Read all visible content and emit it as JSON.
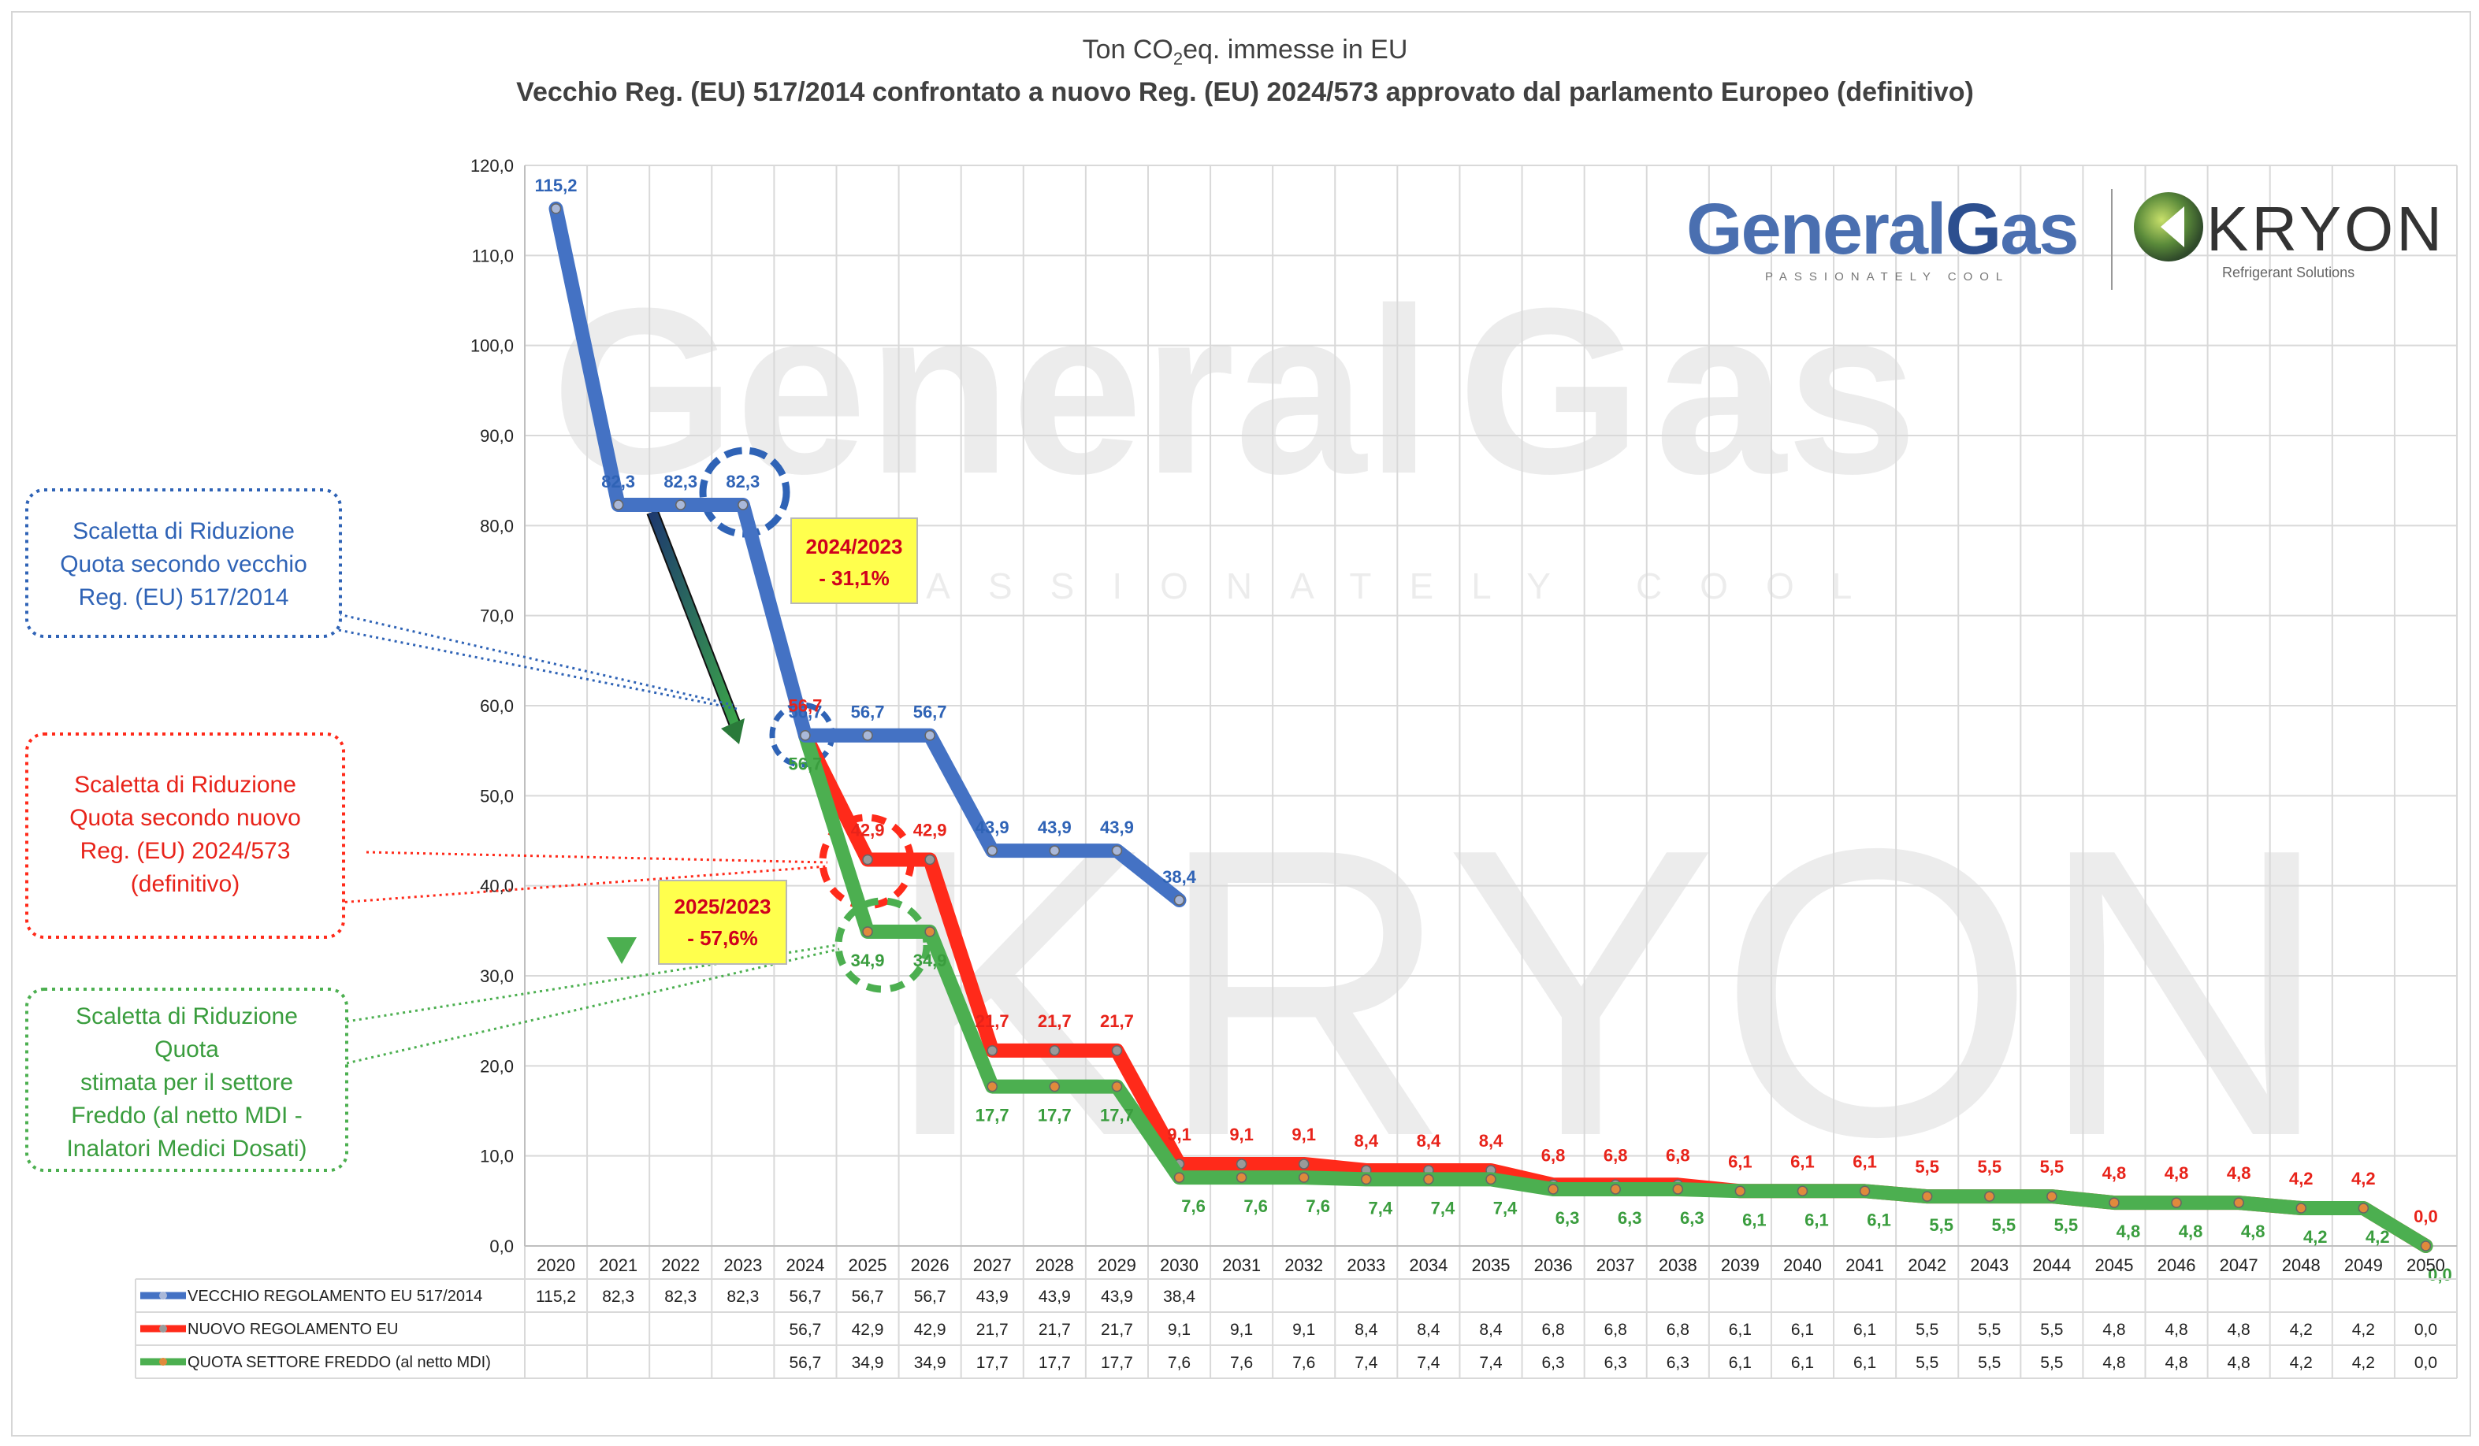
{
  "chart_data": {
    "type": "line",
    "title_parts": {
      "prefix": "Ton CO",
      "sub": "2",
      "suffix": "eq. immesse in EU"
    },
    "subtitle": "Vecchio Reg. (EU) 517/2014 confrontato a nuovo Reg. (EU) 2024/573 approvato dal parlamento Europeo (definitivo)",
    "ylim": [
      0,
      120
    ],
    "yticks": [
      "0,0",
      "10,0",
      "20,0",
      "30,0",
      "40,0",
      "50,0",
      "60,0",
      "70,0",
      "80,0",
      "90,0",
      "100,0",
      "110,0",
      "120,0"
    ],
    "categories": [
      "2020",
      "2021",
      "2022",
      "2023",
      "2024",
      "2025",
      "2026",
      "2027",
      "2028",
      "2029",
      "2030",
      "2031",
      "2032",
      "2033",
      "2034",
      "2035",
      "2036",
      "2037",
      "2038",
      "2039",
      "2040",
      "2041",
      "2042",
      "2043",
      "2044",
      "2045",
      "2046",
      "2047",
      "2048",
      "2049",
      "2050"
    ],
    "series": [
      {
        "name": "VECCHIO REGOLAMENTO EU 517/2014",
        "color": "#4472c4",
        "values": [
          115.2,
          82.3,
          82.3,
          82.3,
          56.7,
          56.7,
          56.7,
          43.9,
          43.9,
          43.9,
          38.4,
          null,
          null,
          null,
          null,
          null,
          null,
          null,
          null,
          null,
          null,
          null,
          null,
          null,
          null,
          null,
          null,
          null,
          null,
          null,
          null
        ],
        "labels": [
          "115,2",
          "82,3",
          "82,3",
          "82,3",
          "56,7",
          "56,7",
          "56,7",
          "43,9",
          "43,9",
          "43,9",
          "38,4",
          "",
          "",
          "",
          "",
          "",
          "",
          "",
          "",
          "",
          "",
          "",
          "",
          "",
          "",
          "",
          "",
          "",
          "",
          "",
          ""
        ]
      },
      {
        "name": "NUOVO REGOLAMENTO EU",
        "color": "#ff2a1a",
        "values": [
          null,
          null,
          null,
          null,
          56.7,
          42.9,
          42.9,
          21.7,
          21.7,
          21.7,
          9.1,
          9.1,
          9.1,
          8.4,
          8.4,
          8.4,
          6.8,
          6.8,
          6.8,
          6.1,
          6.1,
          6.1,
          5.5,
          5.5,
          5.5,
          4.8,
          4.8,
          4.8,
          4.2,
          4.2,
          0.0
        ],
        "labels": [
          "",
          "",
          "",
          "",
          "56,7",
          "42,9",
          "42,9",
          "21,7",
          "21,7",
          "21,7",
          "9,1",
          "9,1",
          "9,1",
          "8,4",
          "8,4",
          "8,4",
          "6,8",
          "6,8",
          "6,8",
          "6,1",
          "6,1",
          "6,1",
          "5,5",
          "5,5",
          "5,5",
          "4,8",
          "4,8",
          "4,8",
          "4,2",
          "4,2",
          "0,0"
        ]
      },
      {
        "name": "QUOTA SETTORE FREDDO (al netto MDI)",
        "color": "#4caf50",
        "values": [
          null,
          null,
          null,
          null,
          56.7,
          34.9,
          34.9,
          17.7,
          17.7,
          17.7,
          7.6,
          7.6,
          7.6,
          7.4,
          7.4,
          7.4,
          6.3,
          6.3,
          6.3,
          6.1,
          6.1,
          6.1,
          5.5,
          5.5,
          5.5,
          4.8,
          4.8,
          4.8,
          4.2,
          4.2,
          0.0
        ],
        "labels": [
          "",
          "",
          "",
          "",
          "56,7",
          "34,9",
          "34,9",
          "17,7",
          "17,7",
          "17,7",
          "7,6",
          "7,6",
          "7,6",
          "7,4",
          "7,4",
          "7,4",
          "6,3",
          "6,3",
          "6,3",
          "6,1",
          "6,1",
          "6,1",
          "5,5",
          "5,5",
          "5,5",
          "4,8",
          "4,8",
          "4,8",
          "4,2",
          "4,2",
          "0,0"
        ]
      }
    ],
    "annotations": {
      "callout_old": [
        "Scaletta di Riduzione",
        "Quota secondo vecchio",
        "Reg. (EU) 517/2014"
      ],
      "callout_new": [
        "Scaletta di Riduzione",
        "Quota secondo nuovo",
        "Reg. (EU) 2024/573",
        "(definitivo)"
      ],
      "callout_cold": [
        "Scaletta di Riduzione",
        "Quota",
        "stimata per il settore",
        "Freddo (al netto MDI -",
        "Inalatori Medici Dosati)"
      ],
      "box_2024": [
        "2024/2023",
        "- 31,1%"
      ],
      "box_2025": [
        "2025/2023",
        "- 57,6%"
      ]
    },
    "logos": {
      "generalgas_a": "General",
      "generalgas_b": "G",
      "generalgas_c": "as",
      "generalgas_tagline": "PASSIONATELY COOL",
      "kryon": "KRYON",
      "kryon_tagline": "Refrigerant Solutions"
    }
  }
}
